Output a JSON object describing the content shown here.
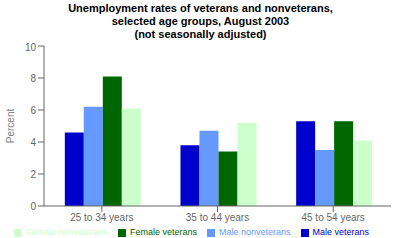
{
  "chart_data": {
    "type": "bar",
    "title": "Unemployment rates of veterans and nonveterans,\nselected age groups, August 2003\n(not seasonally adjusted)",
    "categories": [
      "25 to 34 years",
      "35 to 44 years",
      "45 to 54 years"
    ],
    "series": [
      {
        "name": "Male veterans",
        "values": [
          4.6,
          3.8,
          5.3
        ],
        "color": "#0000cc"
      },
      {
        "name": "Male nonveterans",
        "values": [
          6.2,
          4.7,
          3.5
        ],
        "color": "#6699ff"
      },
      {
        "name": "Female veterans",
        "values": [
          8.1,
          3.4,
          5.3
        ],
        "color": "#006600"
      },
      {
        "name": "Female nonveterans",
        "values": [
          6.1,
          5.2,
          4.1
        ],
        "color": "#ccffcc"
      }
    ],
    "ylabel": "Percent",
    "ylim": [
      0,
      10
    ],
    "yticks": [
      0,
      2,
      4,
      6,
      8,
      10
    ],
    "grid": false,
    "legend": "bottom"
  }
}
